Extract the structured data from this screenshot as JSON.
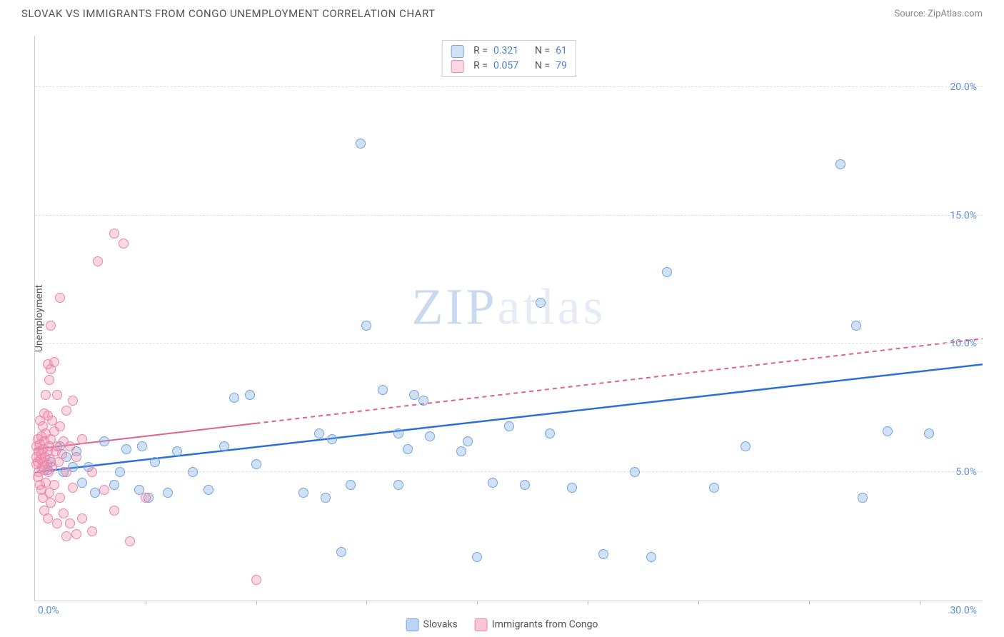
{
  "title": "SLOVAK VS IMMIGRANTS FROM CONGO UNEMPLOYMENT CORRELATION CHART",
  "source_label": "Source: ZipAtlas.com",
  "y_axis_label": "Unemployment",
  "watermark_zip": "ZIP",
  "watermark_atlas": "atlas",
  "chart": {
    "type": "scatter",
    "xlim": [
      0,
      30
    ],
    "ylim": [
      0,
      22
    ],
    "y_ticks": [
      {
        "v": 5,
        "label": "5.0%"
      },
      {
        "v": 10,
        "label": "10.0%"
      },
      {
        "v": 15,
        "label": "15.0%"
      },
      {
        "v": 20,
        "label": "20.0%"
      }
    ],
    "x_ticks": [
      3.5,
      7,
      10.5,
      14,
      17.5,
      21,
      24.5,
      28
    ],
    "x_origin_label": "0.0%",
    "x_max_label": "30.0%",
    "grid_color": "#dddddd",
    "background_color": "#ffffff",
    "marker_size": 14,
    "series": [
      {
        "name": "Slovaks",
        "fill": "rgba(120,170,230,0.35)",
        "stroke": "#6fa3e0",
        "trend_color": "#2c6fd6",
        "trend_width": 2.5,
        "trend_dash": "",
        "trend": {
          "x1": 0,
          "y1": 5.0,
          "x2": 30,
          "y2": 9.2,
          "solid_until_x": 30
        },
        "points": [
          [
            0.4,
            5.1
          ],
          [
            0.5,
            5.4
          ],
          [
            0.8,
            6.0
          ],
          [
            0.9,
            5.0
          ],
          [
            1.0,
            5.6
          ],
          [
            1.2,
            5.2
          ],
          [
            1.3,
            5.8
          ],
          [
            1.5,
            4.6
          ],
          [
            1.7,
            5.2
          ],
          [
            1.9,
            4.2
          ],
          [
            2.2,
            6.2
          ],
          [
            2.5,
            4.5
          ],
          [
            2.7,
            5.0
          ],
          [
            2.9,
            5.9
          ],
          [
            3.3,
            4.3
          ],
          [
            3.4,
            6.0
          ],
          [
            3.6,
            4.0
          ],
          [
            3.8,
            5.4
          ],
          [
            4.2,
            4.2
          ],
          [
            4.5,
            5.8
          ],
          [
            5.0,
            5.0
          ],
          [
            5.5,
            4.3
          ],
          [
            6.0,
            6.0
          ],
          [
            6.3,
            7.9
          ],
          [
            6.8,
            8.0
          ],
          [
            7.0,
            5.3
          ],
          [
            8.5,
            4.2
          ],
          [
            9.0,
            6.5
          ],
          [
            9.2,
            4.0
          ],
          [
            9.4,
            6.3
          ],
          [
            9.7,
            1.9
          ],
          [
            10.0,
            4.5
          ],
          [
            10.3,
            17.8
          ],
          [
            10.5,
            10.7
          ],
          [
            11.0,
            8.2
          ],
          [
            11.5,
            6.5
          ],
          [
            11.5,
            4.5
          ],
          [
            11.8,
            5.9
          ],
          [
            12.0,
            8.0
          ],
          [
            12.3,
            7.8
          ],
          [
            12.5,
            6.4
          ],
          [
            13.5,
            5.8
          ],
          [
            13.7,
            6.2
          ],
          [
            14.0,
            1.7
          ],
          [
            14.5,
            4.6
          ],
          [
            15.0,
            6.8
          ],
          [
            15.5,
            4.5
          ],
          [
            16.0,
            11.6
          ],
          [
            16.3,
            6.5
          ],
          [
            17.0,
            4.4
          ],
          [
            18.0,
            1.8
          ],
          [
            19.0,
            5.0
          ],
          [
            19.5,
            1.7
          ],
          [
            20.0,
            12.8
          ],
          [
            21.5,
            4.4
          ],
          [
            22.5,
            6.0
          ],
          [
            25.5,
            17.0
          ],
          [
            26.0,
            10.7
          ],
          [
            26.2,
            4.0
          ],
          [
            27.0,
            6.6
          ],
          [
            28.3,
            6.5
          ]
        ]
      },
      {
        "name": "Immigrants from Congo",
        "fill": "rgba(240,140,170,0.35)",
        "stroke": "#e985a8",
        "trend_color": "#e35f8d",
        "trend_width": 2,
        "trend_dash": "6,5",
        "trend": {
          "x1": 0,
          "y1": 5.9,
          "x2": 30,
          "y2": 10.2,
          "solid_until_x": 7
        },
        "points": [
          [
            0.05,
            5.3
          ],
          [
            0.05,
            5.6
          ],
          [
            0.05,
            6.0
          ],
          [
            0.1,
            4.8
          ],
          [
            0.1,
            5.4
          ],
          [
            0.1,
            6.3
          ],
          [
            0.12,
            5.0
          ],
          [
            0.12,
            5.8
          ],
          [
            0.15,
            4.5
          ],
          [
            0.15,
            6.1
          ],
          [
            0.15,
            7.0
          ],
          [
            0.18,
            5.5
          ],
          [
            0.2,
            4.3
          ],
          [
            0.2,
            5.7
          ],
          [
            0.2,
            6.4
          ],
          [
            0.22,
            5.2
          ],
          [
            0.25,
            4.0
          ],
          [
            0.25,
            5.9
          ],
          [
            0.25,
            6.8
          ],
          [
            0.28,
            5.4
          ],
          [
            0.3,
            3.5
          ],
          [
            0.3,
            5.1
          ],
          [
            0.3,
            6.2
          ],
          [
            0.3,
            7.3
          ],
          [
            0.32,
            5.6
          ],
          [
            0.35,
            4.6
          ],
          [
            0.35,
            6.5
          ],
          [
            0.35,
            8.0
          ],
          [
            0.38,
            5.3
          ],
          [
            0.4,
            3.2
          ],
          [
            0.4,
            5.8
          ],
          [
            0.4,
            7.2
          ],
          [
            0.4,
            9.2
          ],
          [
            0.42,
            5.0
          ],
          [
            0.45,
            4.2
          ],
          [
            0.45,
            6.0
          ],
          [
            0.45,
            8.6
          ],
          [
            0.48,
            5.5
          ],
          [
            0.5,
            3.8
          ],
          [
            0.5,
            6.3
          ],
          [
            0.5,
            9.0
          ],
          [
            0.5,
            10.7
          ],
          [
            0.55,
            5.2
          ],
          [
            0.55,
            7.0
          ],
          [
            0.6,
            4.5
          ],
          [
            0.6,
            6.6
          ],
          [
            0.6,
            9.3
          ],
          [
            0.65,
            5.8
          ],
          [
            0.7,
            3.0
          ],
          [
            0.7,
            6.0
          ],
          [
            0.7,
            8.0
          ],
          [
            0.75,
            5.4
          ],
          [
            0.8,
            4.0
          ],
          [
            0.8,
            6.8
          ],
          [
            0.8,
            11.8
          ],
          [
            0.85,
            5.7
          ],
          [
            0.9,
            3.4
          ],
          [
            0.9,
            6.2
          ],
          [
            1.0,
            2.5
          ],
          [
            1.0,
            5.0
          ],
          [
            1.0,
            7.4
          ],
          [
            1.1,
            3.0
          ],
          [
            1.1,
            6.0
          ],
          [
            1.2,
            4.4
          ],
          [
            1.2,
            7.8
          ],
          [
            1.3,
            2.6
          ],
          [
            1.3,
            5.6
          ],
          [
            1.5,
            3.2
          ],
          [
            1.5,
            6.3
          ],
          [
            1.8,
            2.7
          ],
          [
            1.8,
            5.0
          ],
          [
            2.0,
            13.2
          ],
          [
            2.2,
            4.3
          ],
          [
            2.5,
            3.5
          ],
          [
            2.5,
            14.3
          ],
          [
            2.8,
            13.9
          ],
          [
            3.0,
            2.3
          ],
          [
            3.5,
            4.0
          ],
          [
            7.0,
            0.8
          ]
        ]
      }
    ]
  },
  "legend_top": [
    {
      "swatch_fill": "rgba(120,170,230,0.35)",
      "swatch_stroke": "#6fa3e0",
      "r_label": "R =",
      "r": "0.321",
      "n_label": "N =",
      "n": "61"
    },
    {
      "swatch_fill": "rgba(240,140,170,0.35)",
      "swatch_stroke": "#e985a8",
      "r_label": "R =",
      "r": "0.057",
      "n_label": "N =",
      "n": "79"
    }
  ],
  "legend_bottom": [
    {
      "swatch_fill": "rgba(120,170,230,0.5)",
      "swatch_stroke": "#6fa3e0",
      "label": "Slovaks"
    },
    {
      "swatch_fill": "rgba(240,140,170,0.5)",
      "swatch_stroke": "#e985a8",
      "label": "Immigrants from Congo"
    }
  ]
}
